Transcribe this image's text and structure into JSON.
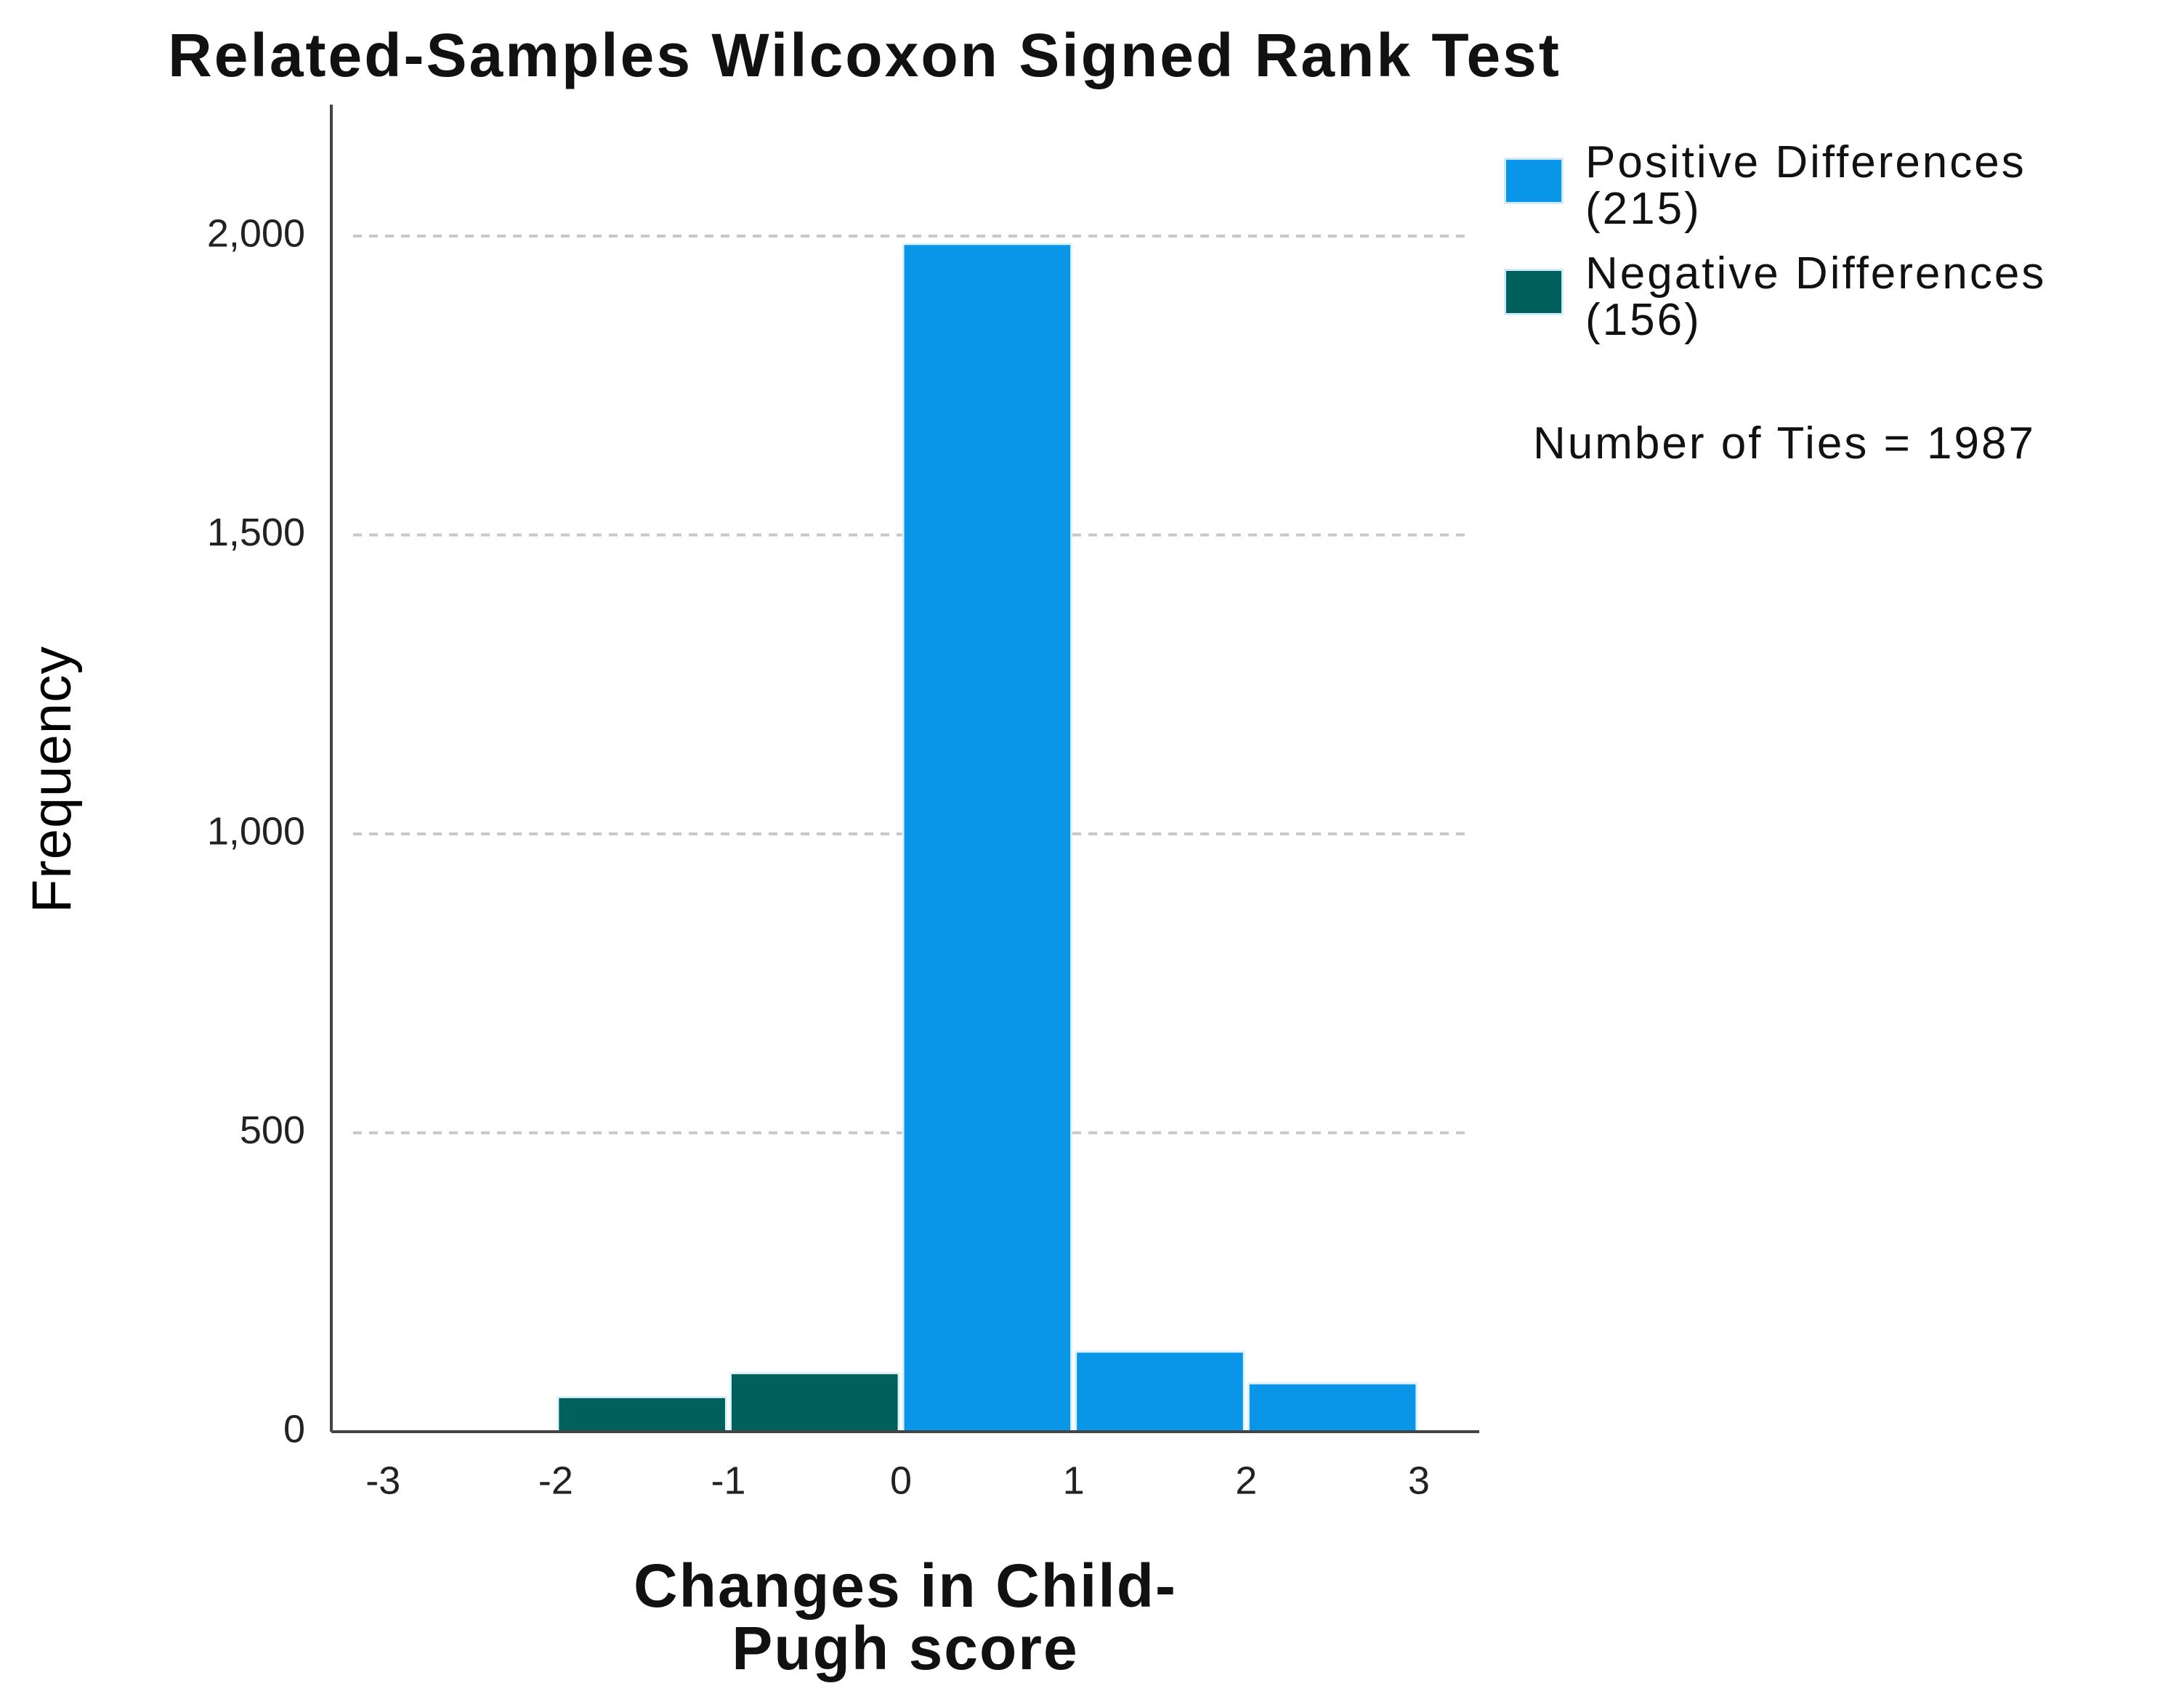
{
  "chart_data": {
    "type": "histogram",
    "title": "Related-Samples Wilcoxon Signed Rank Test",
    "x_label": "Changes in Child-Pugh score",
    "y_label": "Frequency",
    "annotation": "Number of Ties = 1987",
    "bins": [
      -3,
      -2,
      -1,
      0,
      1,
      2,
      3
    ],
    "series": [
      {
        "name": "Positive Differences (215)",
        "color": "#0a96e8",
        "values": [
          null,
          null,
          null,
          1987,
          134,
          81
        ]
      },
      {
        "name": "Negative Differences (156)",
        "color": "#00615c",
        "values": [
          0,
          58,
          98,
          null,
          null,
          null
        ]
      }
    ],
    "xlim": [
      -3.3,
      3.35
    ],
    "xticks": [
      -3,
      -2,
      -1,
      0,
      1,
      2,
      3
    ],
    "ylim": [
      0,
      2220
    ],
    "yticks": [
      0,
      500,
      {
        "value": 1000,
        "label": "1,000"
      },
      {
        "value": 1500,
        "label": "1,500"
      },
      {
        "value": 2000,
        "label": "2,000"
      }
    ],
    "grid": true,
    "legend": "right"
  }
}
